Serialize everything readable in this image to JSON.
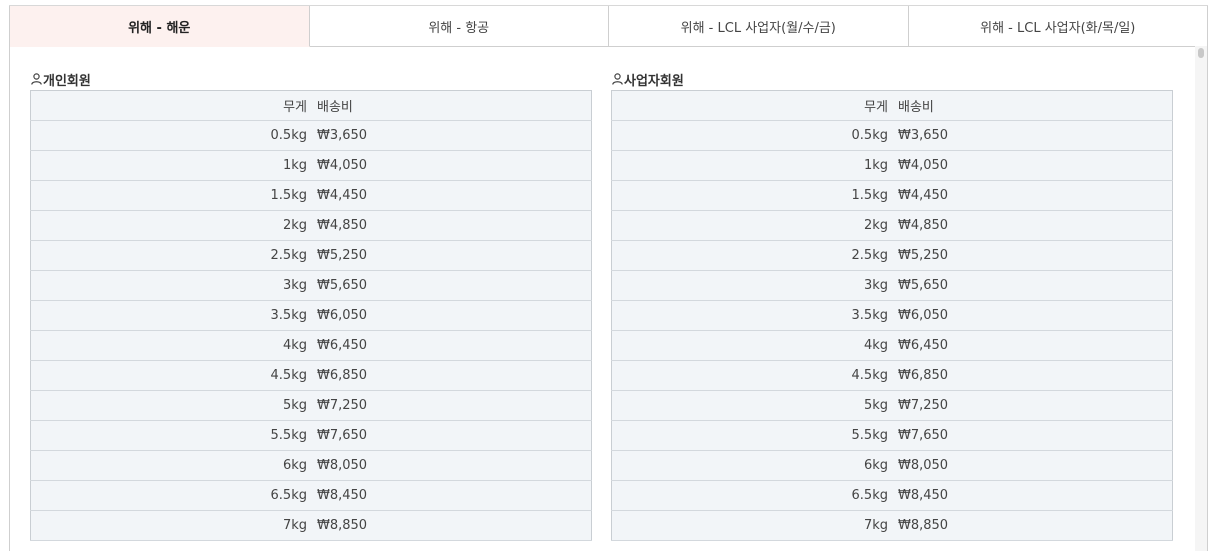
{
  "tabs": [
    {
      "label": "위해 - 해운",
      "active": true
    },
    {
      "label": "위해 - 항공",
      "active": false
    },
    {
      "label": "위해 - LCL 사업자(월/수/금)",
      "active": false
    },
    {
      "label": "위해 - LCL 사업자(화/목/일)",
      "active": false
    }
  ],
  "sections": [
    {
      "title": "개인회원",
      "icon": "person-icon",
      "headers": {
        "weight": "무게",
        "cost": "배송비"
      },
      "rows": [
        {
          "weight": "0.5kg",
          "cost": "₩3,650"
        },
        {
          "weight": "1kg",
          "cost": "₩4,050"
        },
        {
          "weight": "1.5kg",
          "cost": "₩4,450"
        },
        {
          "weight": "2kg",
          "cost": "₩4,850"
        },
        {
          "weight": "2.5kg",
          "cost": "₩5,250"
        },
        {
          "weight": "3kg",
          "cost": "₩5,650"
        },
        {
          "weight": "3.5kg",
          "cost": "₩6,050"
        },
        {
          "weight": "4kg",
          "cost": "₩6,450"
        },
        {
          "weight": "4.5kg",
          "cost": "₩6,850"
        },
        {
          "weight": "5kg",
          "cost": "₩7,250"
        },
        {
          "weight": "5.5kg",
          "cost": "₩7,650"
        },
        {
          "weight": "6kg",
          "cost": "₩8,050"
        },
        {
          "weight": "6.5kg",
          "cost": "₩8,450"
        },
        {
          "weight": "7kg",
          "cost": "₩8,850"
        }
      ]
    },
    {
      "title": "사업자회원",
      "icon": "person-icon",
      "headers": {
        "weight": "무게",
        "cost": "배송비"
      },
      "rows": [
        {
          "weight": "0.5kg",
          "cost": "₩3,650"
        },
        {
          "weight": "1kg",
          "cost": "₩4,050"
        },
        {
          "weight": "1.5kg",
          "cost": "₩4,450"
        },
        {
          "weight": "2kg",
          "cost": "₩4,850"
        },
        {
          "weight": "2.5kg",
          "cost": "₩5,250"
        },
        {
          "weight": "3kg",
          "cost": "₩5,650"
        },
        {
          "weight": "3.5kg",
          "cost": "₩6,050"
        },
        {
          "weight": "4kg",
          "cost": "₩6,450"
        },
        {
          "weight": "4.5kg",
          "cost": "₩6,850"
        },
        {
          "weight": "5kg",
          "cost": "₩7,250"
        },
        {
          "weight": "5.5kg",
          "cost": "₩7,650"
        },
        {
          "weight": "6kg",
          "cost": "₩8,050"
        },
        {
          "weight": "6.5kg",
          "cost": "₩8,450"
        },
        {
          "weight": "7kg",
          "cost": "₩8,850"
        }
      ]
    }
  ],
  "colors": {
    "active_tab_bg": "#fdf1ef",
    "table_bg": "#f2f5f8",
    "border": "#cfcfcf"
  }
}
